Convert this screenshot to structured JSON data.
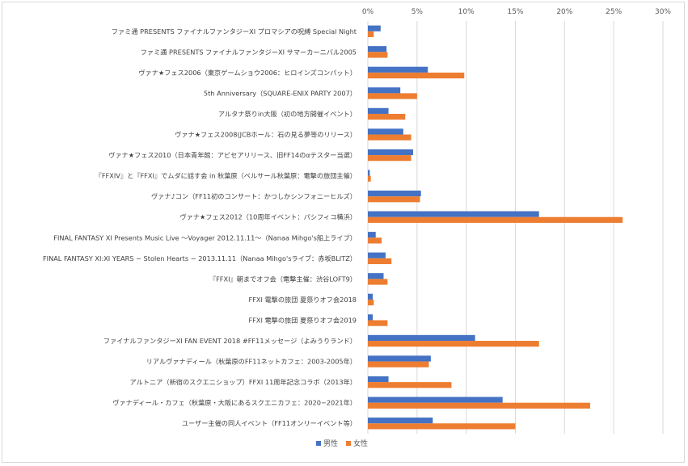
{
  "chart_data": {
    "type": "bar",
    "orientation": "horizontal",
    "x_axis_position": "top",
    "xlim": [
      0,
      30
    ],
    "x_ticks": [
      "0%",
      "5%",
      "10%",
      "15%",
      "20%",
      "25%",
      "30%"
    ],
    "grid": true,
    "legend_position": "bottom",
    "categories": [
      "ファミ通 PRESENTS ファイナルファンタジーXI プロマシアの呪縛 Special Night",
      "ファミ通 PRESENTS ファイナルファンタジーXI サマーカーニバル2005",
      "ヴァナ★フェス2006（東京ゲームショウ2006：ヒロインズコンパット）",
      "5th Anniversary（SQUARE-ENIX PARTY 2007）",
      "アルタナ祭りin大阪（初の地方開催イベント）",
      "ヴァナ★フェス2008(JCBホール：石の見る夢等のリリース）",
      "ヴァナ★フェス2010（日本青年館：アビセアリリース、旧FF14のαテスター当選）",
      "『FFXIV』と『FFXI』でムダに話す会 in 秋葉原（ベルサール秋葉原：電撃の旅団主催）",
      "ヴァナ♪コン（FF11初のコンサート：かつしかシンフォニーヒルズ）",
      "ヴァナ★フェス2012（10周年イベント：パシフィコ横浜）",
      "FINAL FANTASY XI Presents Music Live 〜Voyager 2012.11.11〜（Nanaa Mihgo's船上ライブ）",
      "FINAL FANTASY XI:XI YEARS − Stolen Hearts − 2013.11.11（Nanaa Mihgo'sライブ：赤坂BLITZ）",
      "『FFXI』朝までオフ会（電撃主催：渋谷LOFT9）",
      "FFXI 電撃の旅団 夏祭りオフ会2018",
      "FFXI 電撃の旅団 夏祭りオフ会2019",
      "ファイナルファンタジーXI FAN EVENT 2018 #FF11メッセージ（よみうりランド）",
      "リアルヴァナディール（秋葉原のFF11ネットカフェ：2003-2005年）",
      "アルトニア（新宿のスクエニショップ）FFXI 11周年記念コラボ（2013年）",
      "ヴァナディール・カフェ（秋葉原・大阪にあるスクエニカフェ：2020−2021年）",
      "ユーザー主催の同人イベント（FF11オンリーイベント等）"
    ],
    "series": [
      {
        "name": "男性",
        "color": "#4472c4",
        "values": [
          1.3,
          1.9,
          6.1,
          3.3,
          2.1,
          3.6,
          4.6,
          0.2,
          5.4,
          17.4,
          0.8,
          1.8,
          1.6,
          0.5,
          0.5,
          10.9,
          6.4,
          2.1,
          13.7,
          6.6
        ]
      },
      {
        "name": "女性",
        "color": "#ed7d31",
        "values": [
          0.6,
          2.0,
          9.8,
          5.0,
          3.8,
          4.4,
          4.4,
          0.3,
          5.3,
          25.9,
          1.4,
          2.4,
          2.0,
          0.6,
          2.0,
          17.4,
          6.2,
          8.5,
          22.6,
          15.0
        ]
      }
    ]
  }
}
